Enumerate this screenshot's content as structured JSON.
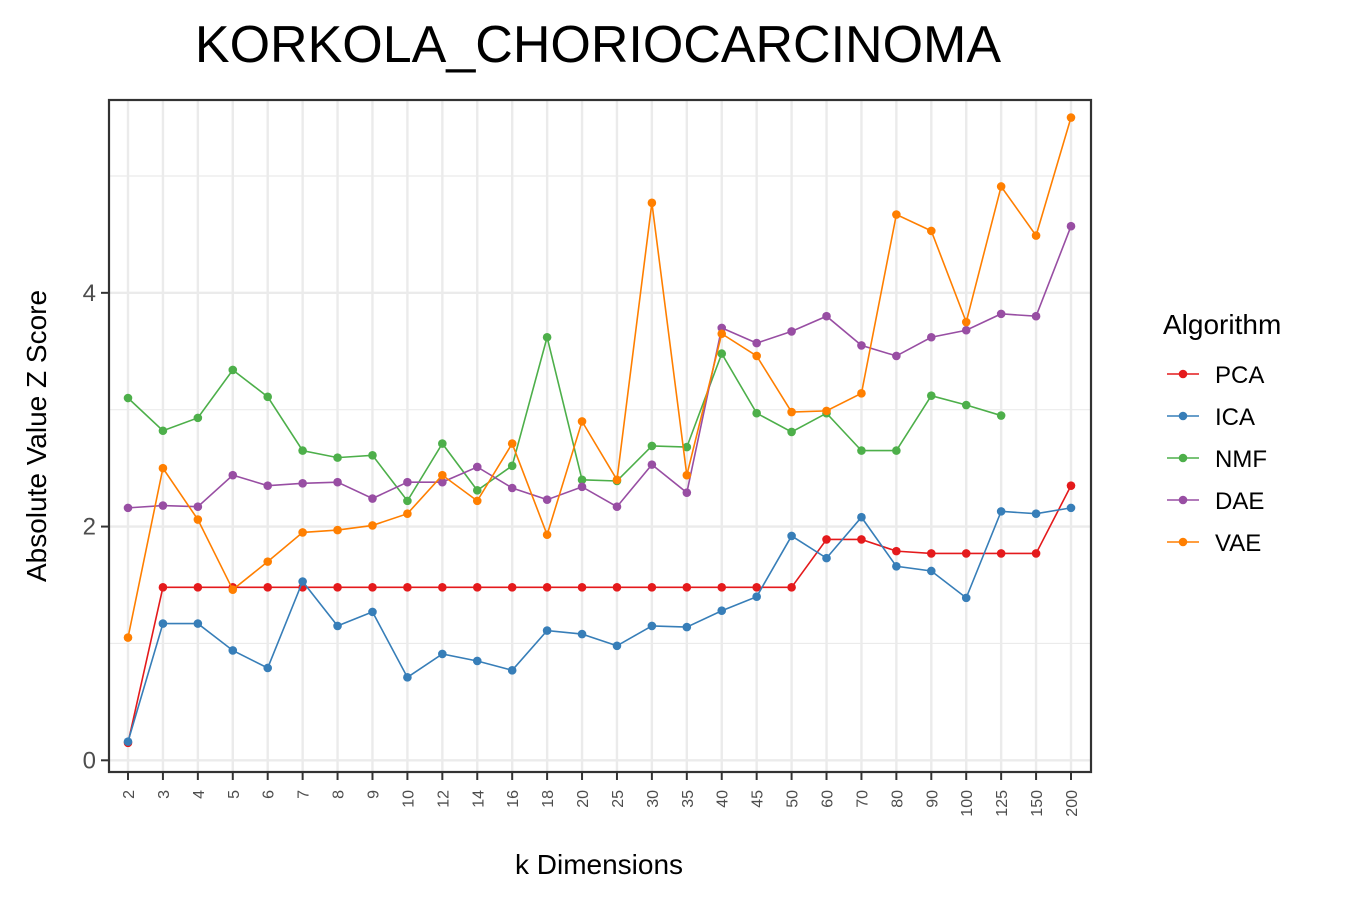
{
  "chart_data": {
    "type": "line",
    "title": "KORKOLA_CHORIOCARCINOMA",
    "xlabel": "k Dimensions",
    "ylabel": "Absolute Value Z Score",
    "categories": [
      "2",
      "3",
      "4",
      "5",
      "6",
      "7",
      "8",
      "9",
      "10",
      "12",
      "14",
      "16",
      "18",
      "20",
      "25",
      "30",
      "35",
      "40",
      "45",
      "50",
      "60",
      "70",
      "80",
      "90",
      "100",
      "125",
      "150",
      "200"
    ],
    "yticks": [
      0,
      2,
      4
    ],
    "ylim": [
      -0.1,
      5.65
    ],
    "grid": true,
    "legend": {
      "title": "Algorithm",
      "placement": "right"
    },
    "series": [
      {
        "name": "PCA",
        "color": "#e41a1c",
        "values": [
          0.15,
          1.48,
          1.48,
          1.48,
          1.48,
          1.48,
          1.48,
          1.48,
          1.48,
          1.48,
          1.48,
          1.48,
          1.48,
          1.48,
          1.48,
          1.48,
          1.48,
          1.48,
          1.48,
          1.48,
          1.89,
          1.89,
          1.79,
          1.77,
          1.77,
          1.77,
          1.77,
          2.35
        ]
      },
      {
        "name": "ICA",
        "color": "#377eb8",
        "values": [
          0.16,
          1.17,
          1.17,
          0.94,
          0.79,
          1.53,
          1.15,
          1.27,
          0.71,
          0.91,
          0.85,
          0.77,
          1.11,
          1.08,
          0.98,
          1.15,
          1.14,
          1.28,
          1.4,
          1.92,
          1.73,
          2.08,
          1.66,
          1.62,
          1.39,
          2.13,
          2.11,
          2.16
        ]
      },
      {
        "name": "NMF",
        "color": "#4daf4a",
        "values": [
          3.1,
          2.82,
          2.93,
          3.34,
          3.11,
          2.65,
          2.59,
          2.61,
          2.22,
          2.71,
          2.31,
          2.52,
          3.62,
          2.4,
          2.39,
          2.69,
          2.68,
          3.48,
          2.97,
          2.81,
          2.97,
          2.65,
          2.65,
          3.12,
          3.04,
          2.95,
          null,
          null
        ]
      },
      {
        "name": "DAE",
        "color": "#984ea3",
        "values": [
          2.16,
          2.18,
          2.17,
          2.44,
          2.35,
          2.37,
          2.38,
          2.24,
          2.38,
          2.38,
          2.51,
          2.33,
          2.23,
          2.34,
          2.17,
          2.53,
          2.29,
          3.7,
          3.57,
          3.67,
          3.8,
          3.55,
          3.46,
          3.62,
          3.68,
          3.82,
          3.8,
          4.57
        ]
      },
      {
        "name": "VAE",
        "color": "#ff7f00",
        "values": [
          1.05,
          2.5,
          2.06,
          1.46,
          1.7,
          1.95,
          1.97,
          2.01,
          2.11,
          2.44,
          2.22,
          2.71,
          1.93,
          2.9,
          2.4,
          4.77,
          2.44,
          3.65,
          3.46,
          2.98,
          2.99,
          3.14,
          4.67,
          4.53,
          3.75,
          4.91,
          4.49,
          5.5
        ]
      }
    ]
  }
}
